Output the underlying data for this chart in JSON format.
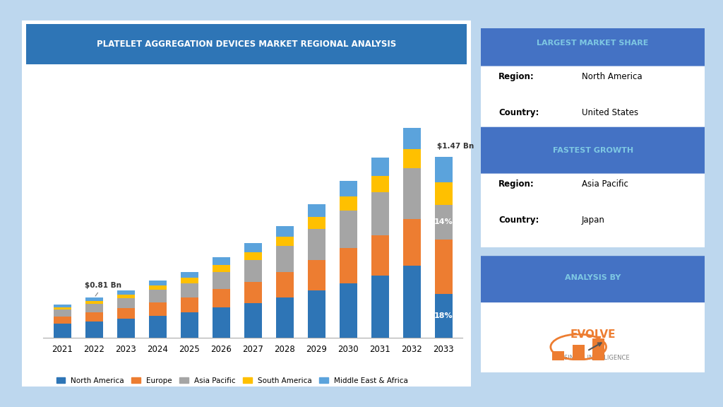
{
  "title": "PLATELET AGGREGATION DEVICES MARKET REGIONAL ANALYSIS",
  "years": [
    2021,
    2022,
    2023,
    2024,
    2025,
    2026,
    2027,
    2028,
    2029,
    2030,
    2031,
    2032,
    2033
  ],
  "regions": [
    "North America",
    "Europe",
    "Asia Pacific",
    "South America",
    "Middle East & Africa"
  ],
  "colors": [
    "#2E75B6",
    "#ED7D31",
    "#A5A5A5",
    "#FFC000",
    "#5BA3DC"
  ],
  "data": {
    "North America": [
      0.085,
      0.1,
      0.115,
      0.135,
      0.155,
      0.185,
      0.21,
      0.245,
      0.285,
      0.33,
      0.375,
      0.435,
      0.265
    ],
    "Europe": [
      0.045,
      0.055,
      0.065,
      0.08,
      0.09,
      0.11,
      0.13,
      0.155,
      0.185,
      0.215,
      0.245,
      0.285,
      0.33
    ],
    "Asia Pacific": [
      0.04,
      0.05,
      0.06,
      0.075,
      0.085,
      0.105,
      0.13,
      0.155,
      0.19,
      0.225,
      0.26,
      0.305,
      0.21
    ],
    "South America": [
      0.015,
      0.018,
      0.022,
      0.028,
      0.032,
      0.04,
      0.048,
      0.058,
      0.07,
      0.085,
      0.1,
      0.115,
      0.135
    ],
    "Middle East & Africa": [
      0.015,
      0.02,
      0.025,
      0.03,
      0.038,
      0.048,
      0.055,
      0.065,
      0.08,
      0.095,
      0.11,
      0.13,
      0.155
    ]
  },
  "annotation_2022": "$0.81 Bn",
  "annotation_2033": "$1.47 Bn",
  "label_18": "18%",
  "label_14": "14%",
  "bg_color": "#BDD7EE",
  "chart_bg": "#FFFFFF",
  "header_color": "#2E75B6",
  "header_text_color": "#FFFFFF",
  "panel_bg": "#DEEAF1",
  "title_bar_color": "#2E75B6",
  "sidebar_title1": "LARGEST MARKET SHARE",
  "sidebar_region1": "North America",
  "sidebar_country1": "United States",
  "sidebar_title2": "FASTEST GROWTH",
  "sidebar_region2": "Asia Pacific",
  "sidebar_country2": "Japan",
  "sidebar_title3": "ANALYSIS BY"
}
